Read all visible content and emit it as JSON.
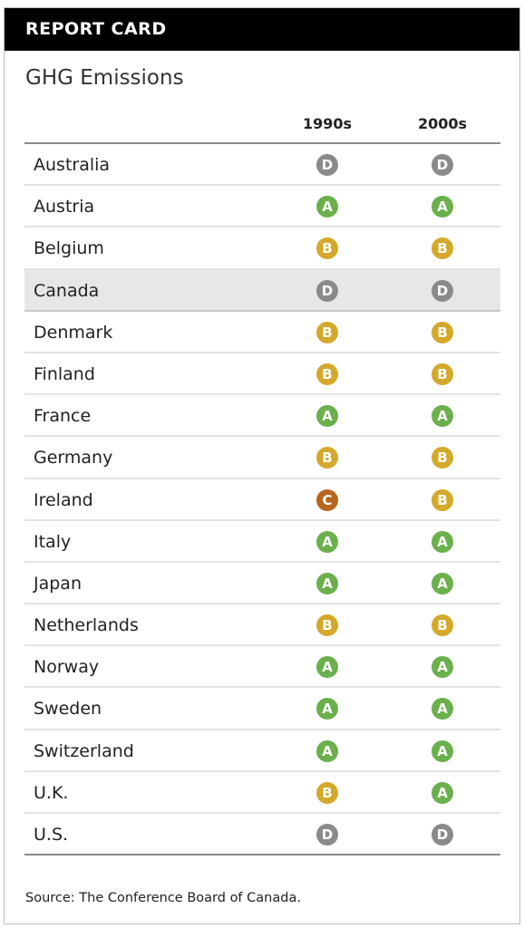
{
  "header": {
    "title": "REPORT CARD"
  },
  "subtitle": "GHG Emissions",
  "columns": [
    "1990s",
    "2000s"
  ],
  "grade_colors": {
    "A": "#6ab04c",
    "B": "#d4a82a",
    "C": "#b8651e",
    "D": "#8a8a8a"
  },
  "rows": [
    {
      "country": "Australia",
      "g1990s": "D",
      "g2000s": "D"
    },
    {
      "country": "Austria",
      "g1990s": "A",
      "g2000s": "A"
    },
    {
      "country": "Belgium",
      "g1990s": "B",
      "g2000s": "B"
    },
    {
      "country": "Canada",
      "g1990s": "D",
      "g2000s": "D",
      "highlight": true
    },
    {
      "country": "Denmark",
      "g1990s": "B",
      "g2000s": "B"
    },
    {
      "country": "Finland",
      "g1990s": "B",
      "g2000s": "B"
    },
    {
      "country": "France",
      "g1990s": "A",
      "g2000s": "A"
    },
    {
      "country": "Germany",
      "g1990s": "B",
      "g2000s": "B"
    },
    {
      "country": "Ireland",
      "g1990s": "C",
      "g2000s": "B"
    },
    {
      "country": "Italy",
      "g1990s": "A",
      "g2000s": "A"
    },
    {
      "country": "Japan",
      "g1990s": "A",
      "g2000s": "A"
    },
    {
      "country": "Netherlands",
      "g1990s": "B",
      "g2000s": "B"
    },
    {
      "country": "Norway",
      "g1990s": "A",
      "g2000s": "A"
    },
    {
      "country": "Sweden",
      "g1990s": "A",
      "g2000s": "A"
    },
    {
      "country": "Switzerland",
      "g1990s": "A",
      "g2000s": "A"
    },
    {
      "country": "U.K.",
      "g1990s": "B",
      "g2000s": "A"
    },
    {
      "country": "U.S.",
      "g1990s": "D",
      "g2000s": "D"
    }
  ],
  "source": "Source: The Conference Board of Canada."
}
